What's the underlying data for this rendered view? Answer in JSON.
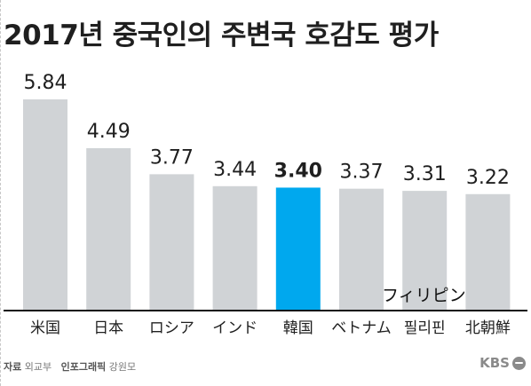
{
  "title": "2017년 중국인의 주변국 호감도 평가",
  "colors": {
    "bar": "#d0d3d6",
    "highlight": "#00a8ee",
    "baseline": "#111111",
    "text": "#1f1f1f"
  },
  "chart_data": {
    "type": "bar",
    "title": "2017년 중국인의 주변국 호감도 평가",
    "categories": [
      "米国",
      "日本",
      "ロシア",
      "インド",
      "韓国",
      "ベトナム",
      "필리핀",
      "北朝鮮"
    ],
    "values": [
      5.84,
      4.49,
      3.77,
      3.44,
      3.4,
      3.37,
      3.31,
      3.22
    ],
    "value_labels": [
      "5.84",
      "4.49",
      "3.77",
      "3.44",
      "3.40",
      "3.37",
      "3.31",
      "3.22"
    ],
    "highlight_index": 4,
    "ylim": [
      0,
      5.84
    ],
    "grid": false,
    "legend": "none"
  },
  "overlay_label": "フィリピン",
  "footer": {
    "source_label": "자료",
    "source_value": "외교부",
    "graphic_label": "인포그래픽",
    "graphic_value": "강원모"
  },
  "brand": {
    "name": "KBS",
    "icon": "kbs-logo-icon"
  }
}
